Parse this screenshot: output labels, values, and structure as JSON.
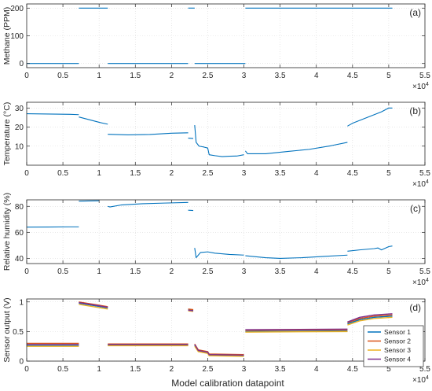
{
  "figure": {
    "xlabel": "Model calibration datapoint",
    "x_exponent_label": "×10",
    "x_exponent_power": "4",
    "x_ticks": [
      0,
      0.5,
      1,
      1.5,
      2,
      2.5,
      3,
      3.5,
      4,
      4.5,
      5,
      5.5
    ],
    "x_tick_labels": [
      "0",
      "0.5",
      "1",
      "1.5",
      "2",
      "2.5",
      "3",
      "3.5",
      "4",
      "4.5",
      "5",
      "5.5"
    ],
    "xlim": [
      0,
      5.5
    ]
  },
  "chart_data": [
    {
      "type": "line",
      "panel_label": "(a)",
      "ylabel": "Methane (PPM)",
      "ylim": [
        -15,
        215
      ],
      "y_ticks": [
        0,
        100,
        200
      ],
      "grid": true,
      "colors": [
        "#0072BD"
      ],
      "series": [
        {
          "segments": [
            [
              [
                0.0,
                0
              ],
              [
                0.72,
                0
              ]
            ],
            [
              [
                0.72,
                200
              ],
              [
                1.12,
                200
              ]
            ],
            [
              [
                1.12,
                0
              ],
              [
                2.23,
                0
              ]
            ],
            [
              [
                2.23,
                200
              ],
              [
                2.32,
                200
              ]
            ],
            [
              [
                2.32,
                0
              ],
              [
                3.02,
                0
              ]
            ],
            [
              [
                3.02,
                200
              ],
              [
                5.05,
                200
              ]
            ]
          ]
        }
      ]
    },
    {
      "type": "line",
      "panel_label": "(b)",
      "ylabel": "Temperature (°C)",
      "ylim": [
        0,
        33
      ],
      "y_ticks": [
        10,
        20,
        30
      ],
      "grid": true,
      "colors": [
        "#0072BD"
      ],
      "series": [
        {
          "segments": [
            [
              [
                0.0,
                27.0
              ],
              [
                0.2,
                26.9
              ],
              [
                0.4,
                26.8
              ],
              [
                0.6,
                26.7
              ],
              [
                0.72,
                26.5
              ]
            ],
            [
              [
                0.72,
                25.3
              ],
              [
                0.85,
                24.0
              ],
              [
                1.0,
                22.5
              ],
              [
                1.12,
                21.5
              ]
            ],
            [
              [
                1.12,
                16.2
              ],
              [
                1.4,
                15.9
              ],
              [
                1.7,
                16.1
              ],
              [
                2.0,
                16.8
              ],
              [
                2.23,
                17.0
              ]
            ],
            [
              [
                2.23,
                14.2
              ],
              [
                2.3,
                14.0
              ]
            ],
            [
              [
                2.32,
                21.0
              ],
              [
                2.34,
                12.0
              ],
              [
                2.38,
                10.0
              ],
              [
                2.45,
                9.5
              ],
              [
                2.5,
                9.0
              ],
              [
                2.52,
                5.5
              ],
              [
                2.6,
                5.0
              ],
              [
                2.7,
                4.5
              ],
              [
                2.8,
                4.7
              ],
              [
                2.9,
                4.8
              ],
              [
                3.0,
                5.5
              ]
            ],
            [
              [
                3.02,
                7.5
              ],
              [
                3.05,
                6.0
              ],
              [
                3.3,
                6.0
              ],
              [
                3.6,
                7.2
              ],
              [
                3.9,
                8.3
              ],
              [
                4.2,
                10.2
              ],
              [
                4.43,
                12.0
              ]
            ],
            [
              [
                4.43,
                20.5
              ],
              [
                4.5,
                22.0
              ],
              [
                4.7,
                25.0
              ],
              [
                4.9,
                28.0
              ],
              [
                5.0,
                30.0
              ],
              [
                5.05,
                30.0
              ]
            ]
          ]
        }
      ]
    },
    {
      "type": "line",
      "panel_label": "(c)",
      "ylabel": "Relative humidity (%)",
      "ylim": [
        36,
        85
      ],
      "y_ticks": [
        40,
        60,
        80
      ],
      "grid": true,
      "colors": [
        "#0072BD"
      ],
      "series": [
        {
          "segments": [
            [
              [
                0.0,
                64.0
              ],
              [
                0.3,
                64.1
              ],
              [
                0.6,
                64.2
              ],
              [
                0.72,
                64.2
              ]
            ],
            [
              [
                0.72,
                84.0
              ],
              [
                1.0,
                84.3
              ]
            ],
            [
              [
                1.12,
                80.0
              ],
              [
                1.15,
                79.5
              ],
              [
                1.3,
                81.0
              ],
              [
                1.6,
                82.0
              ],
              [
                1.9,
                82.5
              ],
              [
                2.23,
                83.0
              ]
            ],
            [
              [
                2.23,
                77.0
              ],
              [
                2.3,
                76.8
              ]
            ],
            [
              [
                2.32,
                48.0
              ],
              [
                2.34,
                40.5
              ],
              [
                2.4,
                44.5
              ],
              [
                2.5,
                45.0
              ],
              [
                2.6,
                44.0
              ],
              [
                2.8,
                43.0
              ],
              [
                3.0,
                42.5
              ]
            ],
            [
              [
                3.02,
                42.0
              ],
              [
                3.3,
                40.5
              ],
              [
                3.5,
                40.0
              ],
              [
                3.8,
                40.5
              ],
              [
                4.1,
                41.5
              ],
              [
                4.43,
                42.5
              ]
            ],
            [
              [
                4.43,
                45.5
              ],
              [
                4.6,
                46.5
              ],
              [
                4.8,
                47.5
              ],
              [
                4.85,
                48.0
              ],
              [
                4.9,
                46.5
              ],
              [
                5.0,
                49.0
              ],
              [
                5.05,
                49.5
              ]
            ]
          ]
        }
      ]
    },
    {
      "type": "line",
      "panel_label": "(d)",
      "ylabel": "Sensor output (V)",
      "ylim": [
        0,
        1.05
      ],
      "y_ticks": [
        0,
        0.5,
        1
      ],
      "y_tick_labels": [
        "0",
        "0.5",
        "1"
      ],
      "grid": true,
      "legend_position": "lower-right",
      "colors": [
        "#0072BD",
        "#D95319",
        "#EDB120",
        "#7E2F8E"
      ],
      "series": [
        {
          "name": "Sensor 1",
          "segments": [
            [
              [
                0.0,
                0.27
              ],
              [
                0.72,
                0.27
              ]
            ],
            [
              [
                0.72,
                0.98
              ],
              [
                1.12,
                0.9
              ]
            ],
            [
              [
                1.12,
                0.27
              ],
              [
                2.23,
                0.27
              ]
            ],
            [
              [
                2.23,
                0.87
              ],
              [
                2.3,
                0.86
              ]
            ],
            [
              [
                2.32,
                0.27
              ],
              [
                2.37,
                0.17
              ],
              [
                2.5,
                0.14
              ],
              [
                2.52,
                0.1
              ],
              [
                3.0,
                0.09
              ]
            ],
            [
              [
                3.02,
                0.5
              ],
              [
                4.43,
                0.51
              ]
            ],
            [
              [
                4.43,
                0.63
              ],
              [
                4.6,
                0.7
              ],
              [
                4.8,
                0.74
              ],
              [
                5.05,
                0.76
              ]
            ]
          ]
        },
        {
          "name": "Sensor 2",
          "segments": [
            [
              [
                0.0,
                0.3
              ],
              [
                0.72,
                0.3
              ]
            ],
            [
              [
                0.72,
                1.0
              ],
              [
                1.12,
                0.92
              ]
            ],
            [
              [
                1.12,
                0.29
              ],
              [
                2.23,
                0.29
              ]
            ],
            [
              [
                2.23,
                0.88
              ],
              [
                2.3,
                0.87
              ]
            ],
            [
              [
                2.32,
                0.29
              ],
              [
                2.37,
                0.19
              ],
              [
                2.5,
                0.16
              ],
              [
                2.52,
                0.12
              ],
              [
                3.0,
                0.11
              ]
            ],
            [
              [
                3.02,
                0.52
              ],
              [
                4.43,
                0.53
              ]
            ],
            [
              [
                4.43,
                0.65
              ],
              [
                4.6,
                0.72
              ],
              [
                4.8,
                0.76
              ],
              [
                5.05,
                0.78
              ]
            ]
          ]
        },
        {
          "name": "Sensor 3",
          "segments": [
            [
              [
                0.0,
                0.25
              ],
              [
                0.72,
                0.25
              ]
            ],
            [
              [
                0.72,
                0.96
              ],
              [
                1.12,
                0.88
              ]
            ],
            [
              [
                1.12,
                0.26
              ],
              [
                2.23,
                0.26
              ]
            ],
            [
              [
                2.23,
                0.85
              ],
              [
                2.3,
                0.84
              ]
            ],
            [
              [
                2.32,
                0.25
              ],
              [
                2.37,
                0.16
              ],
              [
                2.5,
                0.13
              ],
              [
                2.52,
                0.09
              ],
              [
                3.0,
                0.08
              ]
            ],
            [
              [
                3.02,
                0.49
              ],
              [
                4.43,
                0.5
              ]
            ],
            [
              [
                4.43,
                0.61
              ],
              [
                4.6,
                0.68
              ],
              [
                4.8,
                0.72
              ],
              [
                5.05,
                0.74
              ]
            ]
          ]
        },
        {
          "name": "Sensor 4",
          "segments": [
            [
              [
                0.0,
                0.28
              ],
              [
                0.72,
                0.28
              ]
            ],
            [
              [
                0.72,
                0.99
              ],
              [
                1.12,
                0.91
              ]
            ],
            [
              [
                1.12,
                0.28
              ],
              [
                2.23,
                0.28
              ]
            ],
            [
              [
                2.23,
                0.86
              ],
              [
                2.3,
                0.85
              ]
            ],
            [
              [
                2.32,
                0.28
              ],
              [
                2.37,
                0.18
              ],
              [
                2.5,
                0.15
              ],
              [
                2.52,
                0.11
              ],
              [
                3.0,
                0.1
              ]
            ],
            [
              [
                3.02,
                0.53
              ],
              [
                4.43,
                0.54
              ]
            ],
            [
              [
                4.43,
                0.66
              ],
              [
                4.6,
                0.74
              ],
              [
                4.8,
                0.78
              ],
              [
                5.05,
                0.8
              ]
            ]
          ]
        }
      ]
    }
  ]
}
